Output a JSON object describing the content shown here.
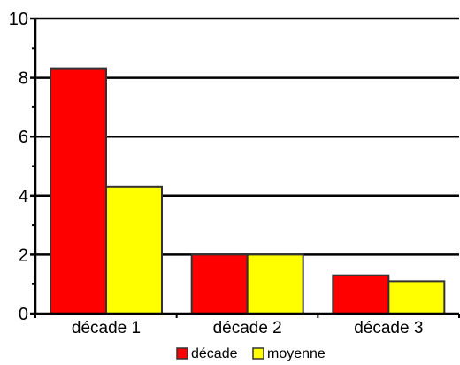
{
  "chart_data": {
    "type": "bar",
    "categories": [
      "décade 1",
      "décade 2",
      "décade 3"
    ],
    "series": [
      {
        "name": "décade",
        "values": [
          8.3,
          2.0,
          1.3
        ],
        "color": "#ff0000"
      },
      {
        "name": "moyenne",
        "values": [
          4.3,
          2.0,
          1.1
        ],
        "color": "#ffff00"
      }
    ],
    "title": "",
    "xlabel": "",
    "ylabel": "",
    "ylim": [
      0,
      10
    ],
    "yticks": [
      "0",
      "2",
      "4",
      "6",
      "8",
      "10"
    ],
    "grid": true,
    "legend_position": "bottom"
  }
}
